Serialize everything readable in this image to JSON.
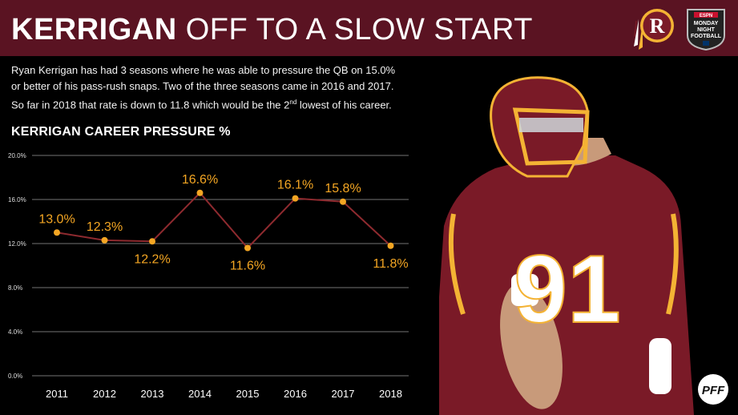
{
  "header": {
    "title_bold": "KERRIGAN",
    "title_rest": "OFF TO A SLOW START",
    "logo_team": "redskins-logo",
    "logo_network": "monday-night-football-logo",
    "logo_network_lines": [
      "ESPN",
      "MONDAY",
      "NIGHT",
      "FOOTBALL"
    ]
  },
  "description": {
    "line1": "Ryan Kerrigan has had 3 seasons where he was able to pressure the QB on 15.0%",
    "line2": "or better of his pass-rush snaps. Two of the three seasons came in 2016 and 2017.",
    "line3_a": "So far in 2018 that rate is down to 11.8 which would be the 2",
    "line3_sup": "nd",
    "line3_b": " lowest of his career."
  },
  "chart_data": {
    "type": "line",
    "title": "KERRIGAN CAREER PRESSURE %",
    "categories": [
      "2011",
      "2012",
      "2013",
      "2014",
      "2015",
      "2016",
      "2017",
      "2018"
    ],
    "values": [
      13.0,
      12.3,
      12.2,
      16.6,
      11.6,
      16.1,
      15.8,
      11.8
    ],
    "data_labels": [
      "13.0%",
      "12.3%",
      "12.2%",
      "16.6%",
      "11.6%",
      "16.1%",
      "15.8%",
      "11.8%"
    ],
    "y_ticks": [
      "0.0%",
      "4.0%",
      "8.0%",
      "12.0%",
      "16.0%",
      "20.0%"
    ],
    "ylim": [
      0,
      20
    ],
    "grid": true,
    "line_color": "#8e2a2f",
    "marker_color": "#f4a623",
    "label_color": "#f4a623"
  },
  "player": {
    "jersey_number": "91"
  },
  "watermark": "PFF",
  "colors": {
    "header_bg": "#5a1322",
    "background": "#000000",
    "jersey": "#7a1a27",
    "gold": "#f4b334"
  }
}
